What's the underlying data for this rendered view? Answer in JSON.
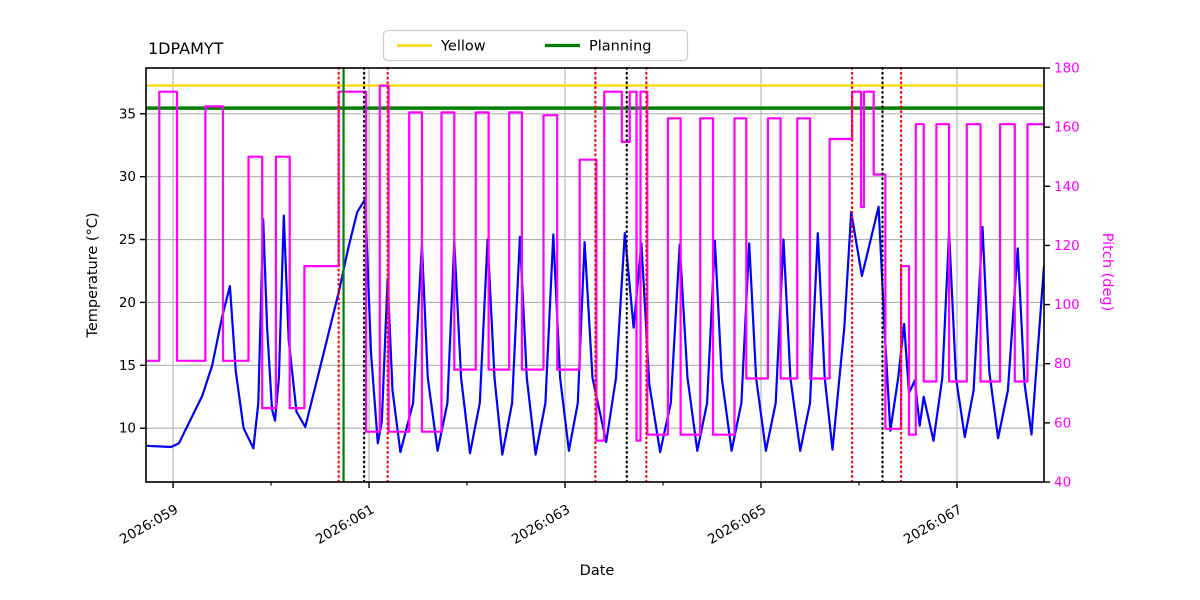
{
  "chart_data": {
    "type": "line",
    "title": "1DPAMYT",
    "xlabel": "Date",
    "ylabel_left": "Temperature (°C)",
    "ylabel_right": "Pitch (deg)",
    "grid": true,
    "x_axis": {
      "range": [
        58.724,
        67.888
      ],
      "major_ticks": [
        {
          "value": 59,
          "label": "2026:059"
        },
        {
          "value": 61,
          "label": "2026:061"
        },
        {
          "value": 63,
          "label": "2026:063"
        },
        {
          "value": 65,
          "label": "2026:065"
        },
        {
          "value": 67,
          "label": "2026:067"
        }
      ],
      "minor_ticks": [
        60,
        62,
        64,
        66
      ]
    },
    "y_left_axis": {
      "range": [
        5.72,
        38.64
      ],
      "ticks": [
        10,
        15,
        20,
        25,
        30,
        35
      ],
      "color": "#000000"
    },
    "y_right_axis": {
      "range": [
        40,
        180
      ],
      "ticks": [
        40,
        60,
        80,
        100,
        120,
        140,
        160,
        180
      ],
      "color": "#ff00ff"
    },
    "legend": {
      "position": "top-center",
      "entries": [
        {
          "label": "Yellow",
          "color": "#ffd700"
        },
        {
          "label": "Planning",
          "color": "#008000"
        }
      ]
    },
    "reference_lines_horizontal": [
      {
        "name": "yellow-limit",
        "temp_value": 37.25,
        "color": "#ffd700",
        "style": "solid",
        "width": 2.2
      },
      {
        "name": "planning-limit",
        "temp_value": 35.45,
        "color": "#008000",
        "style": "solid",
        "width": 3.5
      }
    ],
    "reference_lines_vertical": [
      {
        "day": 60.69,
        "color": "#ff0000",
        "style": "dotted"
      },
      {
        "day": 60.74,
        "color": "#008000",
        "style": "solid"
      },
      {
        "day": 60.95,
        "color": "#000000",
        "style": "dotted"
      },
      {
        "day": 61.19,
        "color": "#ff0000",
        "style": "dotted"
      },
      {
        "day": 63.31,
        "color": "#ff0000",
        "style": "dotted"
      },
      {
        "day": 63.63,
        "color": "#000000",
        "style": "dotted"
      },
      {
        "day": 63.83,
        "color": "#ff0000",
        "style": "dotted"
      },
      {
        "day": 65.93,
        "color": "#ff0000",
        "style": "dotted"
      },
      {
        "day": 66.24,
        "color": "#000000",
        "style": "dotted"
      },
      {
        "day": 66.43,
        "color": "#ff0000",
        "style": "dotted"
      }
    ],
    "series": [
      {
        "name": "Temperature",
        "axis": "left",
        "color": "#0000ff",
        "width": 2.2,
        "points": [
          [
            58.724,
            8.6
          ],
          [
            58.98,
            8.5
          ],
          [
            59.06,
            8.8
          ],
          [
            59.3,
            12.6
          ],
          [
            59.4,
            15.0
          ],
          [
            59.5,
            18.8
          ],
          [
            59.58,
            21.3
          ],
          [
            59.64,
            14.5
          ],
          [
            59.72,
            10.0
          ],
          [
            59.82,
            8.4
          ],
          [
            59.87,
            12.0
          ],
          [
            59.92,
            26.6
          ],
          [
            59.96,
            18.0
          ],
          [
            60.01,
            11.5
          ],
          [
            60.04,
            10.6
          ],
          [
            60.08,
            14.0
          ],
          [
            60.13,
            26.9
          ],
          [
            60.18,
            17.0
          ],
          [
            60.26,
            11.3
          ],
          [
            60.35,
            10.1
          ],
          [
            60.5,
            14.8
          ],
          [
            60.69,
            20.8
          ],
          [
            60.79,
            24.4
          ],
          [
            60.88,
            27.2
          ],
          [
            60.96,
            28.2
          ],
          [
            61.02,
            16.0
          ],
          [
            61.09,
            8.8
          ],
          [
            61.13,
            10.5
          ],
          [
            61.19,
            21.9
          ],
          [
            61.24,
            13.0
          ],
          [
            61.32,
            8.1
          ],
          [
            61.45,
            12.0
          ],
          [
            61.54,
            24.6
          ],
          [
            61.6,
            14.0
          ],
          [
            61.7,
            8.2
          ],
          [
            61.8,
            12.0
          ],
          [
            61.87,
            24.8
          ],
          [
            61.94,
            14.0
          ],
          [
            62.03,
            8.0
          ],
          [
            62.13,
            12.0
          ],
          [
            62.21,
            25.0
          ],
          [
            62.28,
            14.0
          ],
          [
            62.36,
            7.9
          ],
          [
            62.46,
            12.0
          ],
          [
            62.54,
            25.2
          ],
          [
            62.61,
            14.0
          ],
          [
            62.7,
            7.9
          ],
          [
            62.8,
            12.0
          ],
          [
            62.88,
            25.4
          ],
          [
            62.95,
            14.0
          ],
          [
            63.04,
            8.2
          ],
          [
            63.13,
            12.0
          ],
          [
            63.2,
            24.8
          ],
          [
            63.28,
            14.0
          ],
          [
            63.42,
            8.9
          ],
          [
            63.52,
            14.0
          ],
          [
            63.61,
            25.5
          ],
          [
            63.7,
            18.0
          ],
          [
            63.78,
            24.7
          ],
          [
            63.86,
            13.5
          ],
          [
            63.97,
            8.1
          ],
          [
            64.08,
            12.0
          ],
          [
            64.17,
            24.6
          ],
          [
            64.25,
            14.0
          ],
          [
            64.35,
            8.2
          ],
          [
            64.45,
            12.0
          ],
          [
            64.53,
            24.9
          ],
          [
            64.6,
            14.0
          ],
          [
            64.7,
            8.2
          ],
          [
            64.8,
            12.0
          ],
          [
            64.88,
            24.7
          ],
          [
            64.95,
            14.0
          ],
          [
            65.05,
            8.2
          ],
          [
            65.15,
            12.0
          ],
          [
            65.23,
            25.0
          ],
          [
            65.3,
            14.0
          ],
          [
            65.4,
            8.2
          ],
          [
            65.5,
            12.0
          ],
          [
            65.58,
            25.5
          ],
          [
            65.65,
            14.0
          ],
          [
            65.73,
            8.3
          ],
          [
            65.85,
            18.0
          ],
          [
            65.92,
            27.2
          ],
          [
            66.03,
            22.1
          ],
          [
            66.2,
            27.6
          ],
          [
            66.26,
            18.0
          ],
          [
            66.32,
            9.8
          ],
          [
            66.4,
            14.0
          ],
          [
            66.46,
            18.3
          ],
          [
            66.51,
            12.8
          ],
          [
            66.57,
            13.8
          ],
          [
            66.62,
            10.2
          ],
          [
            66.66,
            12.5
          ],
          [
            66.76,
            9.0
          ],
          [
            66.85,
            14.0
          ],
          [
            66.92,
            25.6
          ],
          [
            66.99,
            14.0
          ],
          [
            67.08,
            9.3
          ],
          [
            67.17,
            13.0
          ],
          [
            67.26,
            26.0
          ],
          [
            67.33,
            14.5
          ],
          [
            67.42,
            9.2
          ],
          [
            67.52,
            13.0
          ],
          [
            67.62,
            24.3
          ],
          [
            67.69,
            13.5
          ],
          [
            67.76,
            9.5
          ],
          [
            67.888,
            22.9
          ]
        ]
      },
      {
        "name": "Pitch",
        "axis": "right",
        "color": "#ff00ff",
        "width": 2.2,
        "step_segments": [
          [
            58.724,
            58.86,
            81
          ],
          [
            58.86,
            59.04,
            172
          ],
          [
            59.04,
            59.33,
            81
          ],
          [
            59.33,
            59.51,
            167
          ],
          [
            59.51,
            59.77,
            81
          ],
          [
            59.77,
            59.91,
            150
          ],
          [
            59.91,
            60.05,
            65
          ],
          [
            60.05,
            60.19,
            150
          ],
          [
            60.19,
            60.34,
            65
          ],
          [
            60.34,
            60.69,
            113
          ],
          [
            60.69,
            60.97,
            172
          ],
          [
            60.97,
            61.11,
            57
          ],
          [
            61.11,
            61.2,
            174
          ],
          [
            61.2,
            61.41,
            57
          ],
          [
            61.41,
            61.54,
            165
          ],
          [
            61.54,
            61.74,
            57
          ],
          [
            61.74,
            61.87,
            165
          ],
          [
            61.87,
            62.09,
            78
          ],
          [
            62.09,
            62.22,
            165
          ],
          [
            62.22,
            62.43,
            78
          ],
          [
            62.43,
            62.56,
            165
          ],
          [
            62.56,
            62.78,
            78
          ],
          [
            62.78,
            62.92,
            164
          ],
          [
            62.92,
            63.15,
            78
          ],
          [
            63.15,
            63.32,
            149
          ],
          [
            63.32,
            63.4,
            54
          ],
          [
            63.4,
            63.58,
            172
          ],
          [
            63.58,
            63.66,
            155
          ],
          [
            63.66,
            63.73,
            172
          ],
          [
            63.73,
            63.77,
            54
          ],
          [
            63.77,
            63.84,
            172
          ],
          [
            63.84,
            64.05,
            56
          ],
          [
            64.05,
            64.18,
            163
          ],
          [
            64.18,
            64.38,
            56
          ],
          [
            64.38,
            64.51,
            163
          ],
          [
            64.51,
            64.73,
            56
          ],
          [
            64.73,
            64.85,
            163
          ],
          [
            64.85,
            65.07,
            75
          ],
          [
            65.07,
            65.2,
            163
          ],
          [
            65.2,
            65.37,
            75
          ],
          [
            65.37,
            65.5,
            163
          ],
          [
            65.5,
            65.7,
            75
          ],
          [
            65.7,
            65.93,
            156
          ],
          [
            65.93,
            66.02,
            172
          ],
          [
            66.02,
            66.05,
            133
          ],
          [
            66.05,
            66.15,
            172
          ],
          [
            66.15,
            66.27,
            144
          ],
          [
            66.27,
            66.43,
            58
          ],
          [
            66.43,
            66.51,
            113
          ],
          [
            66.51,
            66.58,
            56
          ],
          [
            66.58,
            66.66,
            161
          ],
          [
            66.66,
            66.79,
            74
          ],
          [
            66.79,
            66.92,
            161
          ],
          [
            66.92,
            67.1,
            74
          ],
          [
            67.1,
            67.24,
            161
          ],
          [
            67.24,
            67.44,
            74
          ],
          [
            67.44,
            67.59,
            161
          ],
          [
            67.59,
            67.72,
            74
          ],
          [
            67.72,
            67.888,
            161
          ]
        ]
      }
    ]
  }
}
